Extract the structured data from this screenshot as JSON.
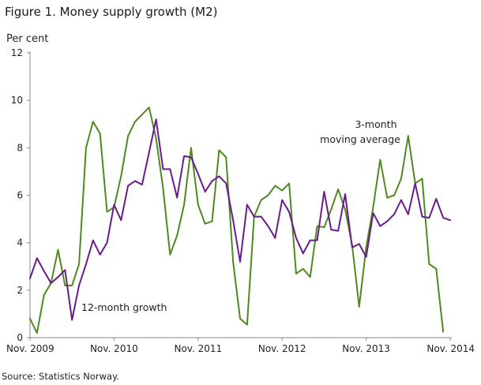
{
  "title": "Figure 1. Money supply growth (M2)",
  "source": "Source: Statistics Norway.",
  "chart_data": {
    "type": "line",
    "ylabel": "Per cent",
    "xlabel": "",
    "ylim": [
      0,
      12
    ],
    "yticks": [
      0,
      2,
      4,
      6,
      8,
      10,
      12
    ],
    "xlim": [
      "2009-11",
      "2014-11"
    ],
    "xtick_labels": [
      "Nov. 2009",
      "Nov. 2010",
      "Nov. 2011",
      "Nov. 2012",
      "Nov. 2013",
      "Nov. 2014"
    ],
    "x": [
      "2009-11",
      "2009-12",
      "2010-01",
      "2010-02",
      "2010-03",
      "2010-04",
      "2010-05",
      "2010-06",
      "2010-07",
      "2010-08",
      "2010-09",
      "2010-10",
      "2010-11",
      "2010-12",
      "2011-01",
      "2011-02",
      "2011-03",
      "2011-04",
      "2011-05",
      "2011-06",
      "2011-07",
      "2011-08",
      "2011-09",
      "2011-10",
      "2011-11",
      "2011-12",
      "2012-01",
      "2012-02",
      "2012-03",
      "2012-04",
      "2012-05",
      "2012-06",
      "2012-07",
      "2012-08",
      "2012-09",
      "2012-10",
      "2012-11",
      "2012-12",
      "2013-01",
      "2013-02",
      "2013-03",
      "2013-04",
      "2013-05",
      "2013-06",
      "2013-07",
      "2013-08",
      "2013-09",
      "2013-10",
      "2013-11",
      "2013-12",
      "2014-01",
      "2014-02",
      "2014-03",
      "2014-04",
      "2014-05",
      "2014-06",
      "2014-07",
      "2014-08",
      "2014-09",
      "2014-10",
      "2014-11"
    ],
    "grid": false,
    "series": [
      {
        "name": "3-month moving average",
        "color": "#4e8a1f",
        "values": [
          0.8,
          0.2,
          1.8,
          2.3,
          3.7,
          2.2,
          2.2,
          3.1,
          8.0,
          9.1,
          8.6,
          5.3,
          5.5,
          6.8,
          8.5,
          9.1,
          9.4,
          9.7,
          8.4,
          6.3,
          3.5,
          4.3,
          5.6,
          8.0,
          5.6,
          4.8,
          4.9,
          7.9,
          7.6,
          3.2,
          0.8,
          0.55,
          5.1,
          5.8,
          6.0,
          6.4,
          6.2,
          6.5,
          2.7,
          2.9,
          2.55,
          4.7,
          4.65,
          5.4,
          6.25,
          5.4,
          3.9,
          1.3,
          3.8,
          5.5,
          7.5,
          5.9,
          6.0,
          6.7,
          8.5,
          6.5,
          6.7,
          3.1,
          2.9,
          0.25,
          null
        ],
        "label_position": "upper right"
      },
      {
        "name": "12-month growth",
        "color": "#6a1b8a",
        "values": [
          2.5,
          3.35,
          2.8,
          2.3,
          2.55,
          2.85,
          0.75,
          2.2,
          3.1,
          4.1,
          3.5,
          4.0,
          5.6,
          4.95,
          6.4,
          6.6,
          6.45,
          7.8,
          9.2,
          7.1,
          7.1,
          5.9,
          7.65,
          7.6,
          6.9,
          6.15,
          6.6,
          6.8,
          6.5,
          4.95,
          3.2,
          5.6,
          5.1,
          5.1,
          4.7,
          4.2,
          5.8,
          5.3,
          4.2,
          3.55,
          4.1,
          4.1,
          6.15,
          4.55,
          4.5,
          6.05,
          3.8,
          3.95,
          3.4,
          5.25,
          4.7,
          4.9,
          5.2,
          5.8,
          5.2,
          6.5,
          5.1,
          5.05,
          5.85,
          5.05,
          4.95
        ],
        "label_position": "lower left"
      }
    ]
  }
}
